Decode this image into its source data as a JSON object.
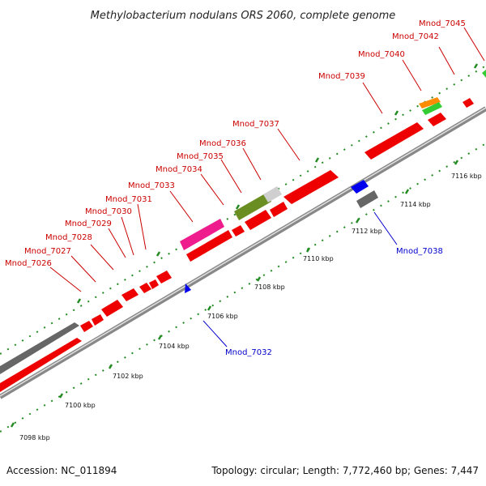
{
  "title": "Methylobacterium nodulans ORS 2060, complete genome",
  "footer": {
    "accession": "Accession: NC_011894",
    "summary": "Topology: circular; Length: 7,772,460 bp; Genes: 7,447"
  },
  "colors": {
    "forward_label": "#cc0000",
    "reverse_label": "#0000cc",
    "cds_red": "#ee0000",
    "cds_blue": "#0000ee",
    "cds_gray": "#666666",
    "cds_lightgray": "#cfcfcf",
    "cds_olive": "#6b8e23",
    "cds_pink": "#ee1c8c",
    "cds_orange": "#ff8c00",
    "cds_green": "#33cc33",
    "tick_green": "#228b22",
    "backbone": "#888888"
  },
  "tick_labels": [
    "7098 kbp",
    "7100 kbp",
    "7102 kbp",
    "7104 kbp",
    "7106 kbp",
    "7108 kbp",
    "7110 kbp",
    "7112 kbp",
    "7114 kbp",
    "7116 kbp"
  ],
  "genes_forward": [
    "Mnod_7026",
    "Mnod_7027",
    "Mnod_7028",
    "Mnod_7029",
    "Mnod_7030",
    "Mnod_7031",
    "Mnod_7033",
    "Mnod_7034",
    "Mnod_7035",
    "Mnod_7036",
    "Mnod_7037",
    "Mnod_7039",
    "Mnod_7040",
    "Mnod_7042",
    "Mnod_7045"
  ],
  "genes_reverse": [
    "Mnod_7032",
    "Mnod_7038"
  ]
}
